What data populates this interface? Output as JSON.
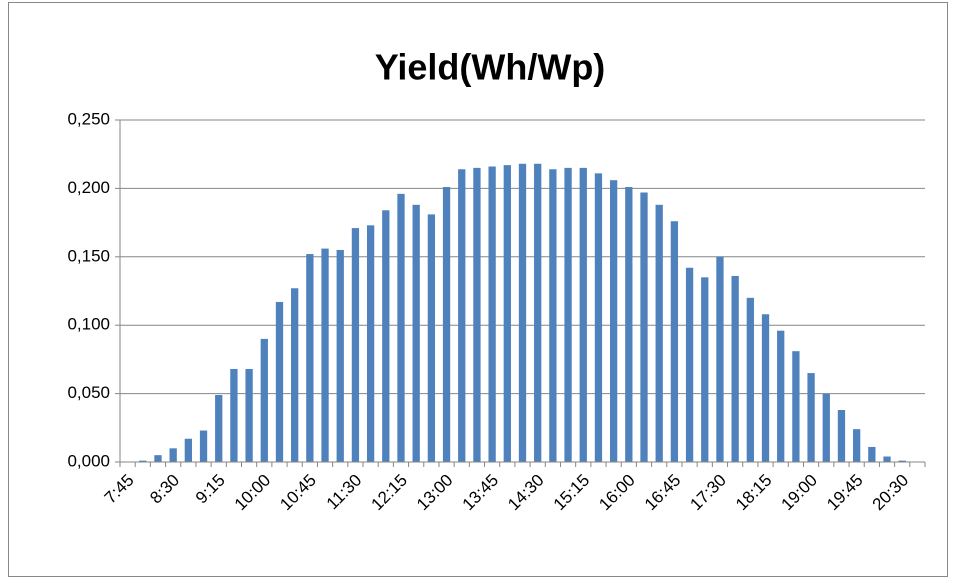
{
  "chart_data": {
    "type": "bar",
    "title": "Yield(Wh/Wp)",
    "categories": [
      "7:45",
      null,
      null,
      "8:30",
      null,
      null,
      "9:15",
      null,
      null,
      "10:00",
      null,
      null,
      "10:45",
      null,
      null,
      "11:30",
      null,
      null,
      "12:15",
      null,
      null,
      "13:00",
      null,
      null,
      "13:45",
      null,
      null,
      "14:30",
      null,
      null,
      "15:15",
      null,
      null,
      "16:00",
      null,
      null,
      "16:45",
      null,
      null,
      "17:30",
      null,
      null,
      "18:15",
      null,
      null,
      "19:00",
      null,
      null,
      "19:45",
      null,
      null,
      "20:30",
      null
    ],
    "values": [
      0,
      0.001,
      0.005,
      0.01,
      0.017,
      0.023,
      0.049,
      0.068,
      0.068,
      0.09,
      0.117,
      0.127,
      0.152,
      0.156,
      0.155,
      0.171,
      0.173,
      0.184,
      0.196,
      0.188,
      0.181,
      0.201,
      0.214,
      0.215,
      0.216,
      0.217,
      0.218,
      0.218,
      0.214,
      0.215,
      0.215,
      0.211,
      0.206,
      0.201,
      0.197,
      0.188,
      0.176,
      0.142,
      0.135,
      0.15,
      0.136,
      0.12,
      0.108,
      0.096,
      0.081,
      0.065,
      0.05,
      0.038,
      0.024,
      0.011,
      0.004,
      0.001,
      0
    ],
    "color": "#4f81bd",
    "ylim": [
      0,
      0.25
    ],
    "yticks": [
      {
        "value": 0,
        "label": "0,000"
      },
      {
        "value": 0.05,
        "label": "0,050"
      },
      {
        "value": 0.1,
        "label": "0,100"
      },
      {
        "value": 0.15,
        "label": "0,150"
      },
      {
        "value": 0.2,
        "label": "0,200"
      },
      {
        "value": 0.25,
        "label": "0,250"
      }
    ],
    "grid": true
  }
}
